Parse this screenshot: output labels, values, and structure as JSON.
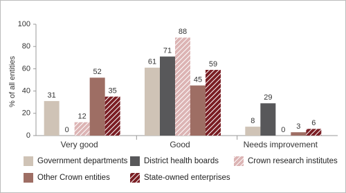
{
  "chart_data": {
    "type": "bar",
    "y_label": "% of all entities",
    "categories": [
      "Very good",
      "Good",
      "Needs improvement"
    ],
    "series": [
      {
        "name": "Government departments",
        "color": "#cfc3b6",
        "hatch": false,
        "values": [
          31,
          61,
          8
        ]
      },
      {
        "name": "District health boards",
        "color": "#58585a",
        "hatch": false,
        "values": [
          0,
          71,
          29
        ]
      },
      {
        "name": "Crown research institutes",
        "color": "#dcb4b4",
        "hatch": true,
        "values": [
          12,
          88,
          0
        ]
      },
      {
        "name": "Other Crown entities",
        "color": "#9e6e64",
        "hatch": false,
        "values": [
          52,
          45,
          3
        ]
      },
      {
        "name": "State-owned enterprises",
        "color": "#7a1e24",
        "hatch": true,
        "values": [
          35,
          59,
          6
        ]
      }
    ],
    "ylim": [
      0,
      100
    ],
    "yticks": [
      0,
      20,
      40,
      60,
      80,
      100
    ],
    "grid": false
  }
}
